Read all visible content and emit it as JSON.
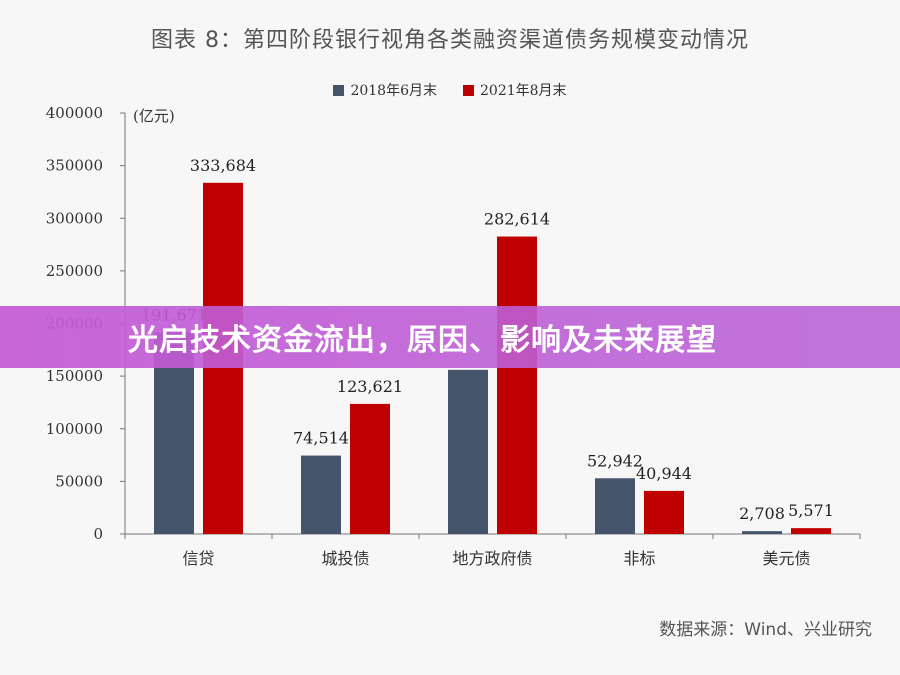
{
  "chart_data": {
    "type": "bar",
    "title": "图表 8：第四阶段银行视角各类融资渠道债务规模变动情况",
    "ylabel": "(亿元)",
    "xlabel": "",
    "ylim": [
      0,
      400000
    ],
    "yticks": [
      "0",
      "50000",
      "100000",
      "150000",
      "200000",
      "250000",
      "300000",
      "350000",
      "400000"
    ],
    "categories": [
      "信贷",
      "城投债",
      "地方政府债",
      "非标",
      "美元债"
    ],
    "series": [
      {
        "name": "2018年6月末",
        "color": "#44546a",
        "values": [
          191671,
          74514,
          156000,
          52942,
          2708
        ],
        "labels": [
          "191,671",
          "74,514",
          "",
          "52,942",
          "2,708"
        ]
      },
      {
        "name": "2021年8月末",
        "color": "#c00000",
        "values": [
          333684,
          123621,
          282614,
          40944,
          5571
        ],
        "labels": [
          "333,684",
          "123,621",
          "282,614",
          "40,944",
          "5,571"
        ]
      }
    ],
    "legend_position": "top-center",
    "grid": false
  },
  "source": "数据来源：Wind、兴业研究",
  "banner": {
    "text": "光启技术资金流出，原因、影响及未来展望"
  }
}
